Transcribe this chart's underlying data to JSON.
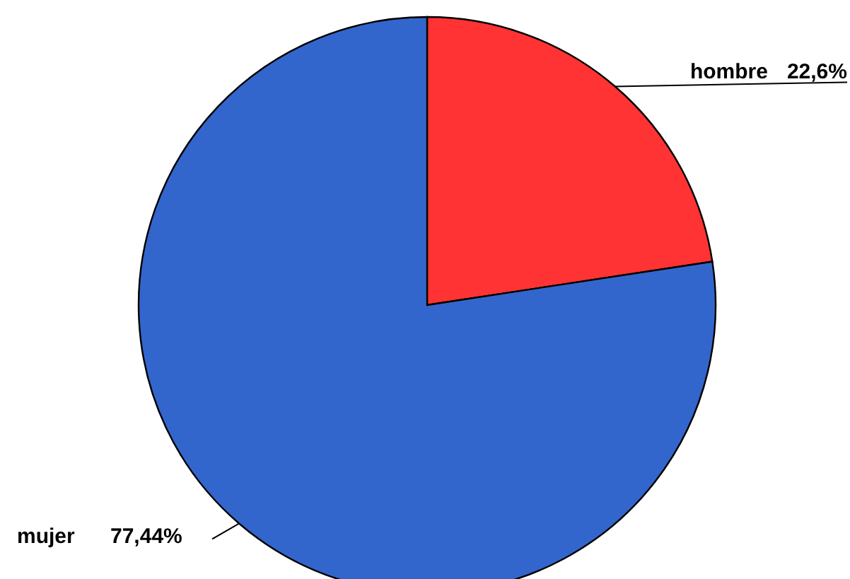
{
  "chart_data": {
    "type": "pie",
    "categories": [
      "hombre",
      "mujer"
    ],
    "values": [
      22.6,
      77.44
    ],
    "colors": [
      "#ff3333",
      "#3366cc"
    ],
    "value_labels": [
      "22,6%",
      "77,44%"
    ]
  }
}
